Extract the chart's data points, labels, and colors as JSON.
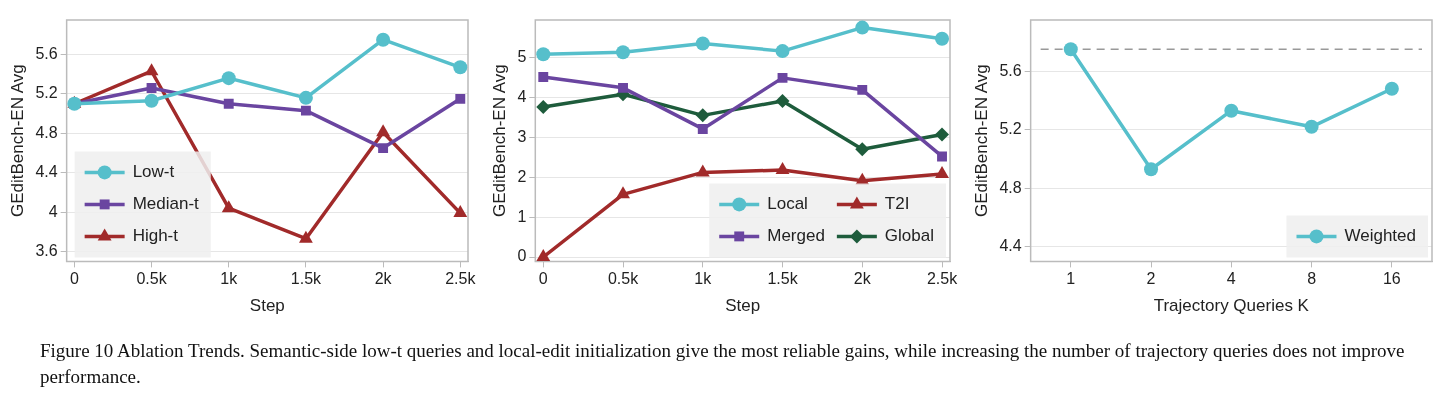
{
  "chart_data": [
    {
      "type": "line",
      "xlabel": "Step",
      "ylabel": "GEditBench-EN Avg",
      "x": [
        0,
        500,
        1000,
        1500,
        2000,
        2500
      ],
      "xlim": [
        -50,
        2550
      ],
      "xticks": [
        0,
        {
          "value": 500,
          "label": "0.5k"
        },
        {
          "value": 1000,
          "label": "1k"
        },
        {
          "value": 1500,
          "label": "1.5k"
        },
        {
          "value": 2000,
          "label": "2k"
        },
        {
          "value": 2500,
          "label": "2.5k"
        }
      ],
      "ylim": [
        3.5,
        5.95
      ],
      "yticks": [
        3.6,
        4,
        4.4,
        4.8,
        5.2,
        5.6
      ],
      "grid": "y",
      "legend": "bottom left",
      "series": [
        {
          "name": "Low-t",
          "color": "#56bfcb",
          "marker": "circle",
          "values": [
            5.1,
            5.13,
            5.36,
            5.16,
            5.75,
            5.47
          ]
        },
        {
          "name": "Median-t",
          "color": "#6a45a0",
          "marker": "square",
          "values": [
            5.1,
            5.26,
            5.1,
            5.03,
            4.65,
            5.15
          ]
        },
        {
          "name": "High-t",
          "color": "#a12a2a",
          "marker": "triangle",
          "values": [
            5.1,
            5.43,
            4.04,
            3.73,
            4.81,
            3.99
          ]
        }
      ]
    },
    {
      "type": "line",
      "xlabel": "Step",
      "ylabel": "GEditBench-EN Avg",
      "x": [
        0,
        500,
        1000,
        1500,
        2000,
        2500
      ],
      "xlim": [
        -50,
        2550
      ],
      "xticks": [
        0,
        {
          "value": 500,
          "label": "0.5k"
        },
        {
          "value": 1000,
          "label": "1k"
        },
        {
          "value": 1500,
          "label": "1.5k"
        },
        {
          "value": 2000,
          "label": "2k"
        },
        {
          "value": 2500,
          "label": "2.5k"
        }
      ],
      "ylim": [
        -0.11,
        5.94
      ],
      "yticks": [
        0,
        1,
        2,
        3,
        4,
        5
      ],
      "grid": "y",
      "legend": "bottom right",
      "series": [
        {
          "name": "Local",
          "color": "#56bfcb",
          "marker": "circle",
          "values": [
            5.08,
            5.13,
            5.35,
            5.16,
            5.75,
            5.47
          ]
        },
        {
          "name": "Merged",
          "color": "#6a45a0",
          "marker": "square",
          "values": [
            4.51,
            4.24,
            3.21,
            4.49,
            4.19,
            2.52
          ]
        },
        {
          "name": "T2I",
          "color": "#a12a2a",
          "marker": "triangle",
          "values": [
            0,
            1.57,
            2.12,
            2.18,
            1.91,
            2.08
          ]
        },
        {
          "name": "Global",
          "color": "#1e5c3c",
          "marker": "diamond",
          "values": [
            3.76,
            4.08,
            3.55,
            3.91,
            2.7,
            3.07
          ]
        }
      ]
    },
    {
      "type": "line",
      "xlabel": "Trajectory Queries K",
      "ylabel": "GEditBench-EN Avg",
      "categories": [
        "1",
        "2",
        "4",
        "8",
        "16"
      ],
      "ylim": [
        4.3,
        5.95
      ],
      "yticks": [
        4.4,
        4.8,
        5.2,
        5.6
      ],
      "grid": "y",
      "legend": "bottom right",
      "ref_lines": [
        {
          "axis": "y",
          "value": 5.75,
          "color": "#999999",
          "line_style": "dashed"
        }
      ],
      "annotations": [
        "Figure 10  Ablation Trends. Semantic-side low-t queries and local-edit initialization give the most reliable gains, while increasing the number of trajectory queries does not improve performance."
      ],
      "series": [
        {
          "name": "Weighted",
          "color": "#56bfcb",
          "marker": "circle",
          "values": [
            5.75,
            4.93,
            5.33,
            5.22,
            5.48
          ]
        }
      ]
    }
  ]
}
